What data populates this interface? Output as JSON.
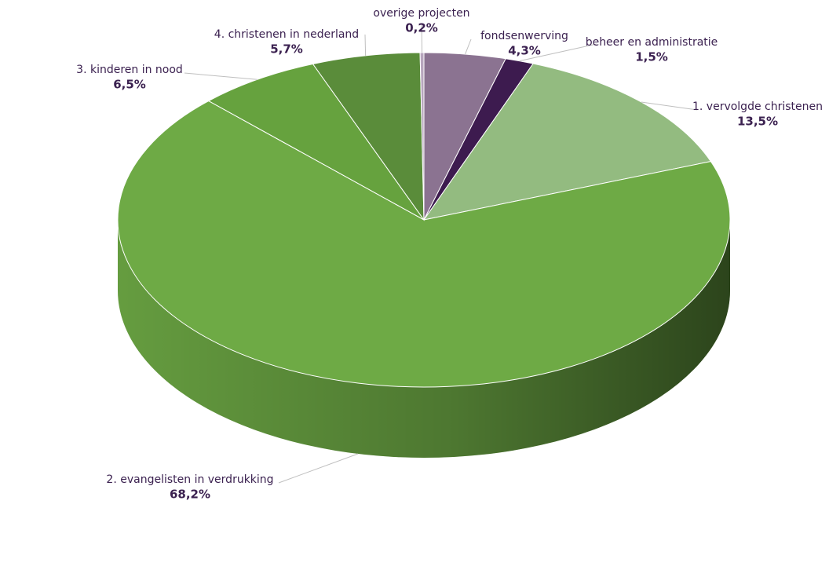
{
  "chart_data": {
    "type": "pie",
    "categories": [
      "fondsenwerving",
      "beheer en administratie",
      "1. vervolgde christenen",
      "2. evangelisten in verdrukking",
      "3. kinderen in nood",
      "4. christenen in nederland",
      "overige projecten"
    ],
    "values": [
      4.3,
      1.5,
      13.5,
      68.2,
      6.5,
      5.7,
      0.2
    ],
    "value_labels": [
      "4,3%",
      "1,5%",
      "13,5%",
      "68,2%",
      "6,5%",
      "5,7%",
      "0,2%"
    ],
    "colors": [
      "#8b7391",
      "#3d1b4f",
      "#93bb80",
      "#6eaa45",
      "#66a23e",
      "#5a8c3a",
      "#b7a6bd"
    ]
  }
}
